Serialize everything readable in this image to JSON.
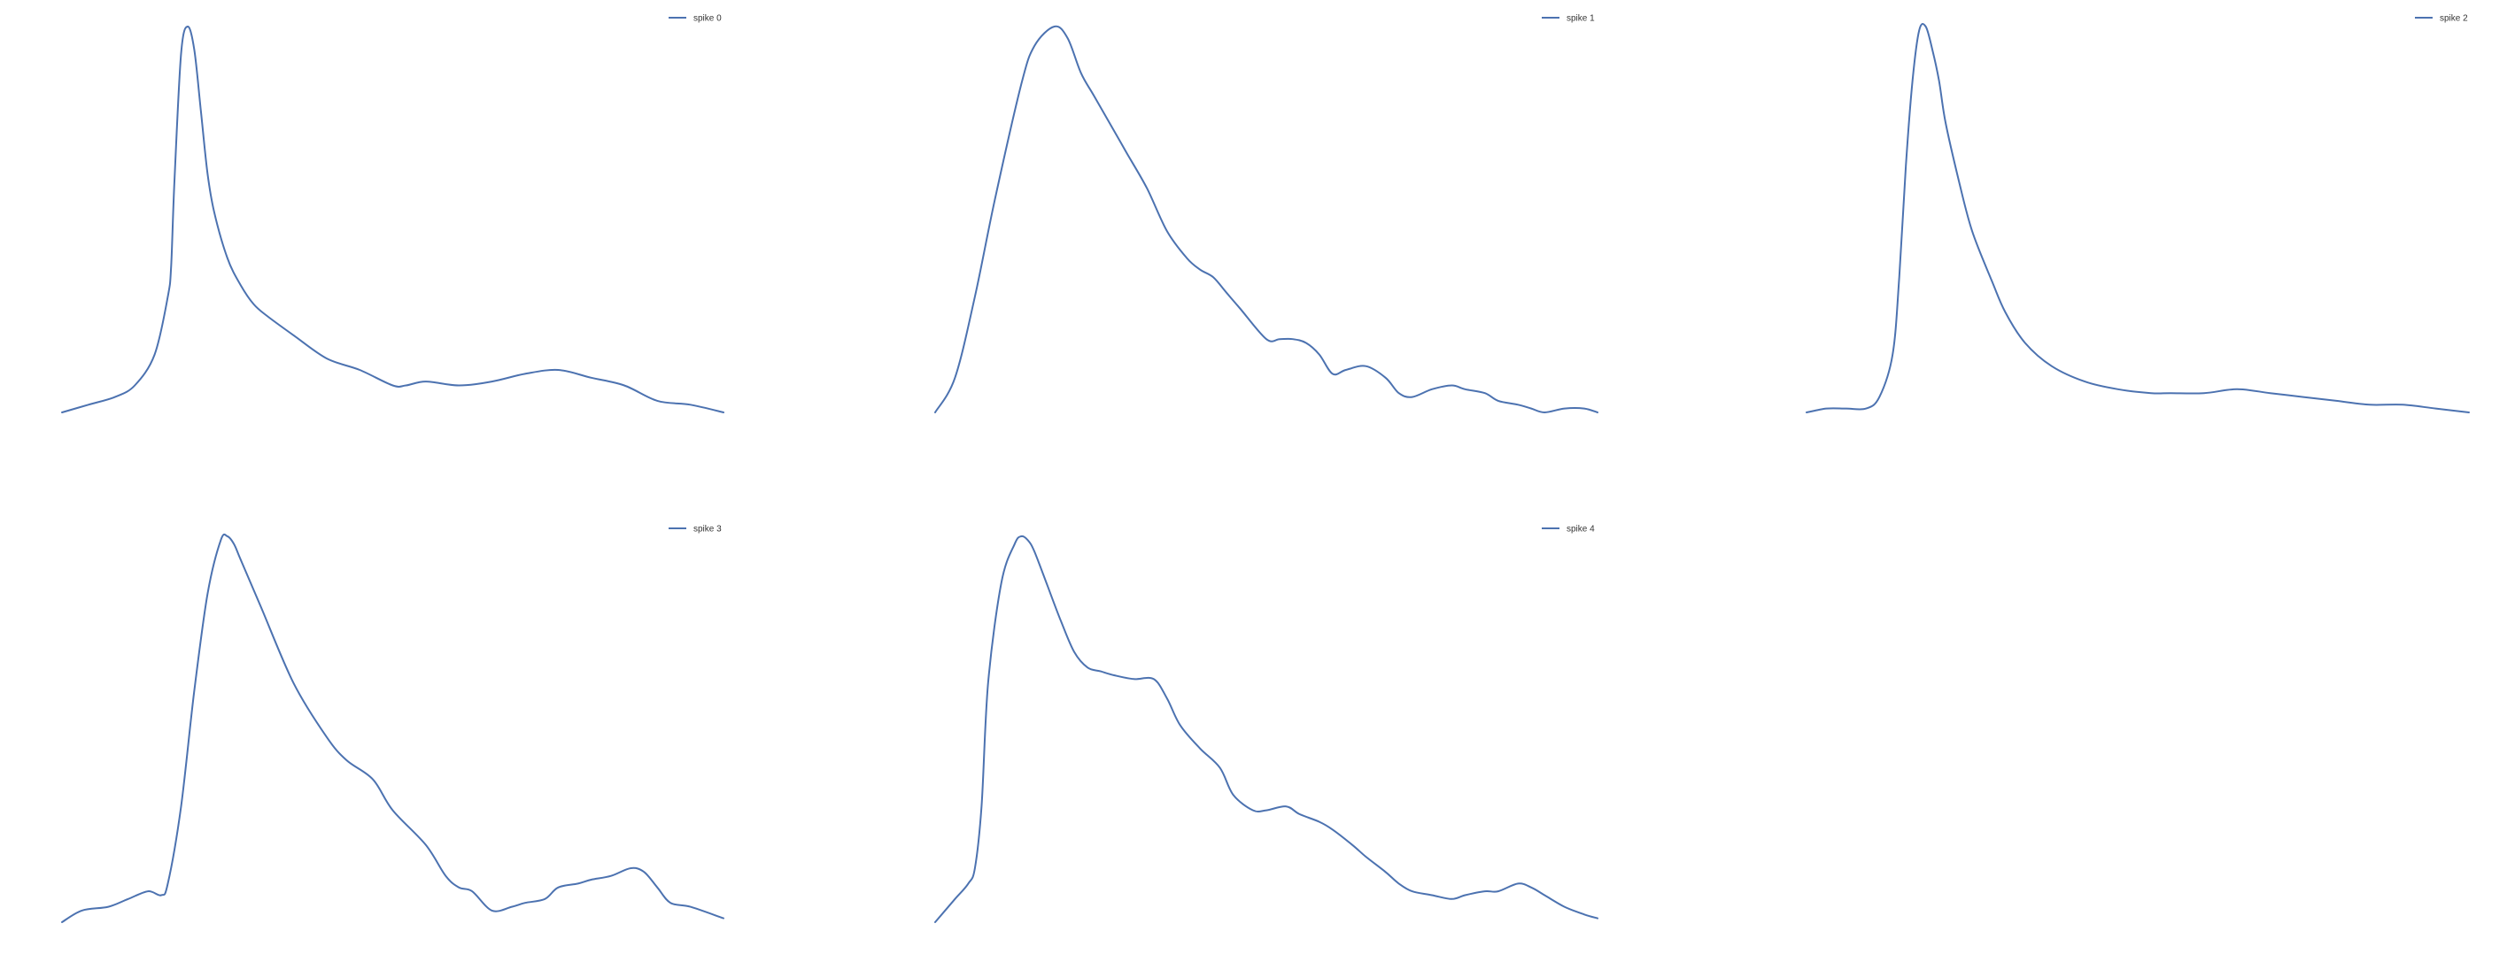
{
  "chart_data": [
    {
      "type": "line",
      "series": [
        {
          "name": "spike 0",
          "x": [
            0,
            4,
            8,
            11,
            14,
            16,
            16.5,
            17,
            18,
            19,
            20,
            21,
            22,
            23,
            25,
            27,
            29,
            31,
            35,
            40,
            45,
            50,
            52,
            55,
            60,
            65,
            70,
            75,
            80,
            85,
            90,
            95,
            100
          ],
          "values": [
            0.0,
            0.02,
            0.04,
            0.07,
            0.15,
            0.3,
            0.38,
            0.6,
            0.93,
            1.0,
            0.94,
            0.78,
            0.62,
            0.52,
            0.4,
            0.33,
            0.28,
            0.25,
            0.2,
            0.14,
            0.11,
            0.07,
            0.07,
            0.08,
            0.07,
            0.08,
            0.1,
            0.11,
            0.09,
            0.07,
            0.03,
            0.02,
            0.0
          ]
        }
      ],
      "grid": false,
      "legend_position": "top-right",
      "line_color": "#4c72b0"
    },
    {
      "type": "line",
      "series": [
        {
          "name": "spike 1",
          "x": [
            0,
            3,
            6,
            9,
            13,
            15,
            18,
            20,
            22,
            24,
            27,
            29,
            32,
            35,
            38,
            40,
            42,
            44,
            46,
            50,
            52,
            54,
            56,
            58,
            60,
            62,
            65,
            68,
            70,
            72,
            75,
            78,
            80,
            83,
            85,
            88,
            90,
            92,
            95,
            98,
            100
          ],
          "values": [
            0.0,
            0.09,
            0.3,
            0.55,
            0.85,
            0.95,
            1.0,
            0.97,
            0.88,
            0.82,
            0.73,
            0.67,
            0.58,
            0.47,
            0.4,
            0.37,
            0.35,
            0.31,
            0.27,
            0.19,
            0.19,
            0.19,
            0.18,
            0.15,
            0.1,
            0.11,
            0.12,
            0.09,
            0.05,
            0.04,
            0.06,
            0.07,
            0.06,
            0.05,
            0.03,
            0.02,
            0.01,
            0.0,
            0.01,
            0.01,
            0.0
          ]
        }
      ],
      "grid": false,
      "legend_position": "top-right",
      "line_color": "#4c72b0"
    },
    {
      "type": "line",
      "series": [
        {
          "name": "spike 2",
          "x": [
            0,
            3,
            6,
            9,
            11,
            13,
            14,
            15,
            16,
            17,
            18,
            19,
            20,
            21,
            23,
            25,
            28,
            30,
            33,
            37,
            42,
            47,
            52,
            55,
            60,
            65,
            70,
            75,
            80,
            85,
            90,
            95,
            100
          ],
          "values": [
            0.0,
            0.01,
            0.01,
            0.01,
            0.04,
            0.15,
            0.35,
            0.64,
            0.86,
            0.99,
            1.0,
            0.94,
            0.86,
            0.75,
            0.6,
            0.47,
            0.34,
            0.26,
            0.18,
            0.12,
            0.08,
            0.06,
            0.05,
            0.05,
            0.05,
            0.06,
            0.05,
            0.04,
            0.03,
            0.02,
            0.02,
            0.01,
            0.0
          ]
        }
      ],
      "grid": false,
      "legend_position": "top-right",
      "line_color": "#4c72b0"
    },
    {
      "type": "line",
      "series": [
        {
          "name": "spike 3",
          "x": [
            0,
            3,
            7,
            10,
            13,
            15,
            16,
            18,
            20,
            22,
            24,
            25,
            26,
            27,
            30,
            35,
            40,
            43,
            47,
            50,
            55,
            58,
            60,
            62,
            65,
            68,
            70,
            73,
            75,
            78,
            80,
            83,
            86,
            88,
            90,
            92,
            95,
            100
          ],
          "values": [
            0.0,
            0.03,
            0.04,
            0.06,
            0.08,
            0.07,
            0.1,
            0.3,
            0.6,
            0.85,
            0.99,
            1.0,
            0.98,
            0.94,
            0.82,
            0.62,
            0.48,
            0.42,
            0.37,
            0.29,
            0.2,
            0.12,
            0.09,
            0.08,
            0.03,
            0.04,
            0.05,
            0.06,
            0.09,
            0.1,
            0.11,
            0.12,
            0.14,
            0.13,
            0.09,
            0.05,
            0.04,
            0.01
          ]
        }
      ],
      "grid": false,
      "legend_position": "top-right",
      "line_color": "#4c72b0"
    },
    {
      "type": "line",
      "series": [
        {
          "name": "spike 4",
          "x": [
            0,
            3,
            5,
            6,
            7,
            8,
            10,
            12,
            13,
            14,
            15,
            17,
            19,
            21,
            23,
            25,
            27,
            30,
            33,
            35,
            37,
            40,
            43,
            45,
            48,
            50,
            53,
            55,
            58,
            60,
            63,
            65,
            68,
            70,
            72,
            75,
            78,
            80,
            83,
            85,
            88,
            90,
            92,
            95,
            98,
            100
          ],
          "values": [
            0.0,
            0.06,
            0.1,
            0.14,
            0.3,
            0.62,
            0.88,
            0.98,
            1.0,
            0.99,
            0.96,
            0.87,
            0.78,
            0.7,
            0.66,
            0.65,
            0.64,
            0.63,
            0.63,
            0.58,
            0.51,
            0.45,
            0.4,
            0.33,
            0.29,
            0.29,
            0.3,
            0.28,
            0.26,
            0.24,
            0.2,
            0.17,
            0.13,
            0.1,
            0.08,
            0.07,
            0.06,
            0.07,
            0.08,
            0.08,
            0.1,
            0.09,
            0.07,
            0.04,
            0.02,
            0.01
          ]
        }
      ],
      "grid": false,
      "legend_position": "top-right",
      "line_color": "#4c72b0"
    }
  ]
}
